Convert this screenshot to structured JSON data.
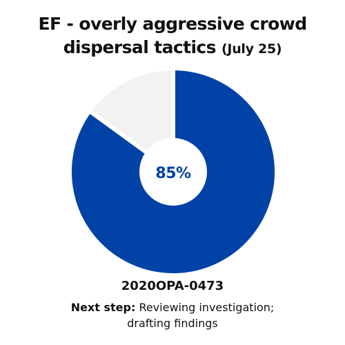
{
  "colors": {
    "primary": "#0042a6",
    "remaining": "#f2f2f2",
    "background": "#ffffff"
  },
  "chart_data": {
    "type": "pie",
    "title": "EF - overly aggressive crowd dispersal tactics",
    "subtitle": "(July 25)",
    "center_label": "85%",
    "slices": [
      {
        "name": "",
        "value": 85,
        "color": "#0042a6"
      },
      {
        "name": "",
        "value": 15,
        "color": "#f2f2f2"
      }
    ]
  },
  "case": {
    "id": "2020OPA-0473",
    "next_step_label": "Next step:",
    "next_step_text": "Reviewing investigation; drafting findings"
  }
}
